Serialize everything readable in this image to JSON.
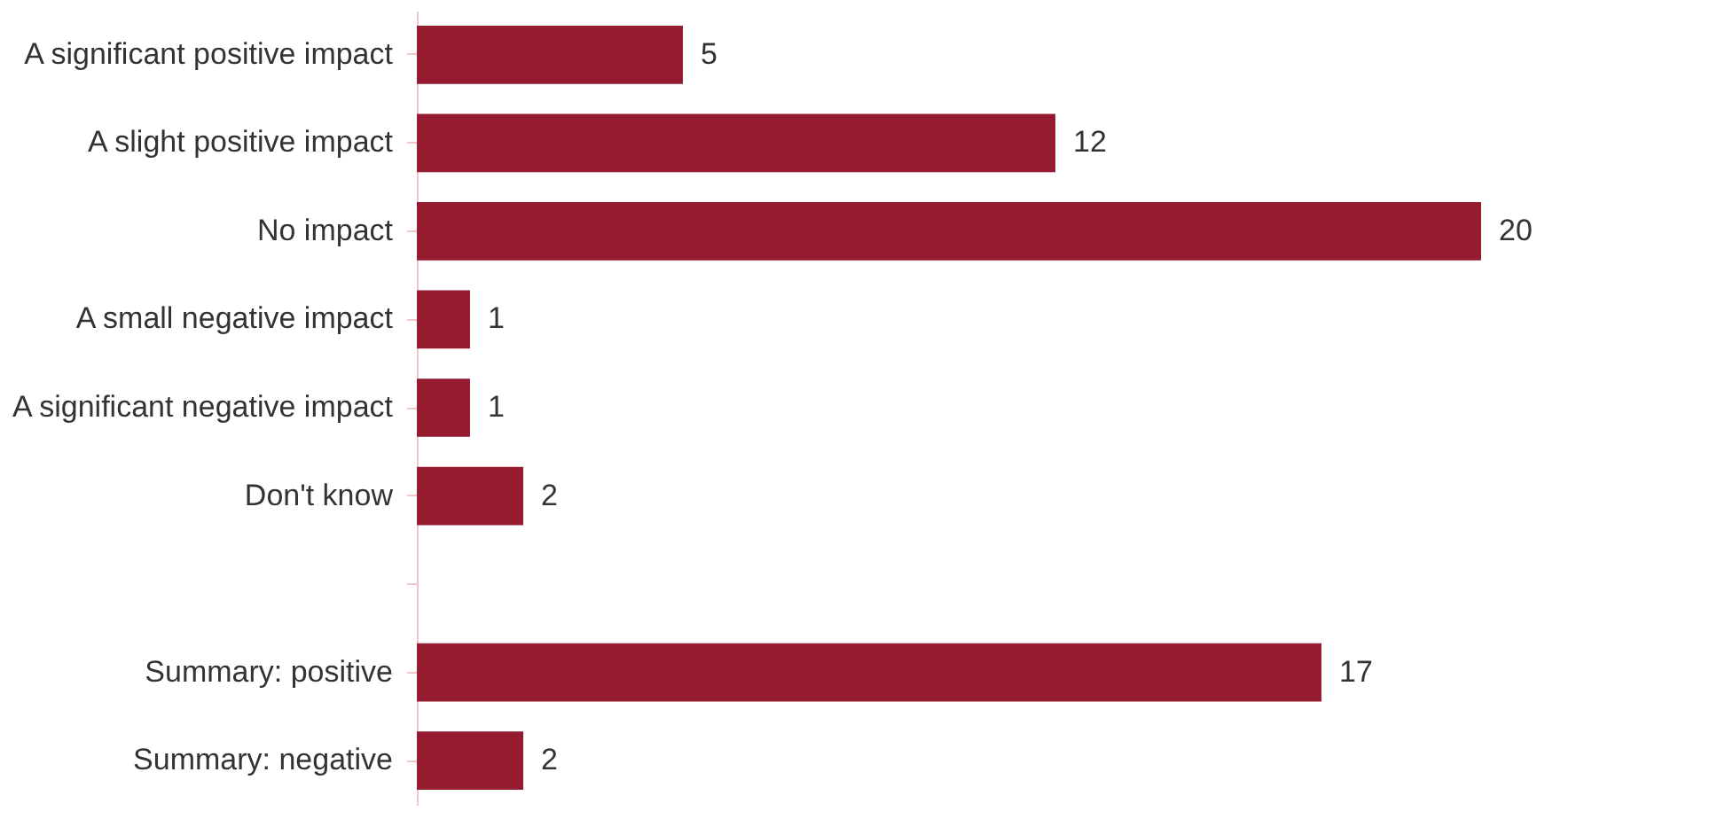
{
  "chart_data": {
    "type": "bar",
    "orientation": "horizontal",
    "categories": [
      "A significant positive impact",
      "A slight positive impact",
      "No impact",
      "A small negative impact",
      "A significant negative impact",
      "Don't know",
      null,
      "Summary: positive",
      "Summary: negative"
    ],
    "values": [
      5,
      12,
      20,
      1,
      1,
      2,
      null,
      17,
      2
    ],
    "color": "#951b30",
    "data_labels": true
  }
}
